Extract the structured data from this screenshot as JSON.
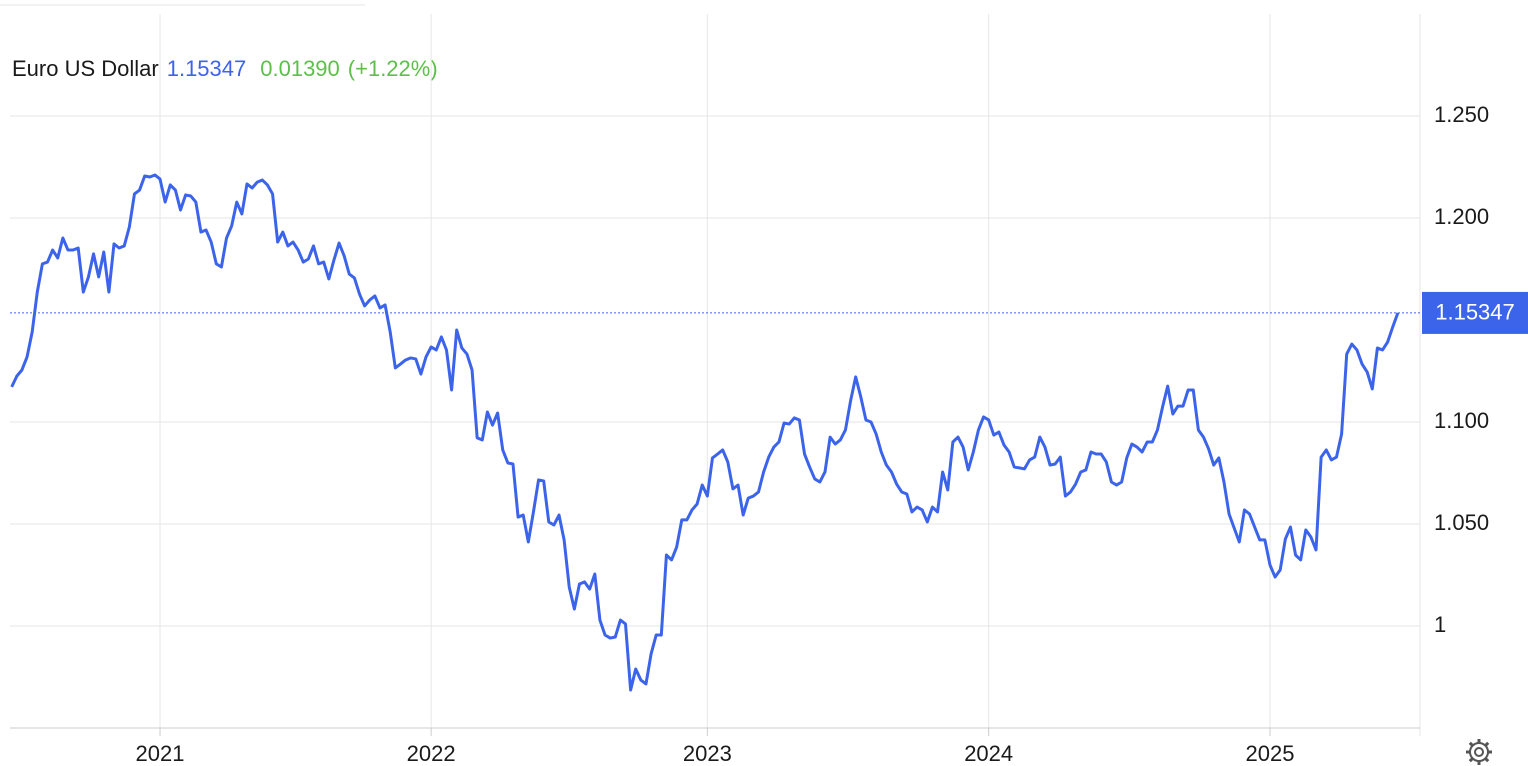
{
  "chart_data": {
    "type": "line",
    "price": "1.15347",
    "change": "0.01390",
    "change_percent": "(+1.22%)",
    "categories": [
      null,
      null,
      null,
      null,
      null,
      null,
      null,
      null,
      null,
      null,
      null,
      null,
      null,
      null,
      null,
      null,
      null,
      null,
      null,
      null,
      null,
      null,
      null,
      null,
      null,
      null,
      null,
      null,
      null,
      "2021",
      null,
      null,
      null,
      null,
      null,
      null,
      null,
      null,
      null,
      null,
      null,
      null,
      null,
      null,
      null,
      null,
      null,
      null,
      null,
      null,
      null,
      null,
      null,
      null,
      null,
      null,
      null,
      null,
      null,
      null,
      null,
      null,
      null,
      null,
      null,
      null,
      null,
      null,
      null,
      null,
      null,
      null,
      null,
      null,
      null,
      null,
      null,
      null,
      null,
      null,
      null,
      null,
      "2022",
      null,
      null,
      null,
      null,
      null,
      null,
      null,
      null,
      null,
      null,
      null,
      null,
      null,
      null,
      null,
      null,
      null,
      null,
      null,
      null,
      null,
      null,
      null,
      null,
      null,
      null,
      null,
      null,
      null,
      null,
      null,
      null,
      null,
      null,
      null,
      null,
      null,
      null,
      null,
      null,
      null,
      null,
      null,
      null,
      null,
      null,
      null,
      null,
      null,
      null,
      null,
      null,
      null,
      "2023",
      null,
      null,
      null,
      null,
      null,
      null,
      null,
      null,
      null,
      null,
      null,
      null,
      null,
      null,
      null,
      null,
      null,
      null,
      null,
      null,
      null,
      null,
      null,
      null,
      null,
      null,
      null,
      null,
      null,
      null,
      null,
      null,
      null,
      null,
      null,
      null,
      null,
      null,
      null,
      null,
      null,
      null,
      null,
      null,
      null,
      null,
      null,
      null,
      null,
      null,
      null,
      null,
      null,
      null,
      "2024",
      null,
      null,
      null,
      null,
      null,
      null,
      null,
      null,
      null,
      null,
      null,
      null,
      null,
      null,
      null,
      null,
      null,
      null,
      null,
      null,
      null,
      null,
      null,
      null,
      null,
      null,
      null,
      null,
      null,
      null,
      null,
      null,
      null,
      null,
      null,
      null,
      null,
      null,
      null,
      null,
      null,
      null,
      null,
      null,
      null,
      null,
      null,
      null,
      null,
      null,
      null,
      null,
      null,
      null,
      "2025",
      null,
      null,
      null,
      null,
      null,
      null,
      null,
      null,
      null,
      null,
      null,
      null,
      null,
      null,
      null,
      null,
      null,
      null,
      null,
      null,
      null,
      null,
      null,
      null,
      null
    ],
    "series": [
      {
        "name": "Euro US Dollar",
        "color": "#3c64ea",
        "values": [
          1.1172,
          1.1225,
          1.1255,
          1.1319,
          1.1441,
          1.1637,
          1.1775,
          1.1784,
          1.1843,
          1.1804,
          1.1902,
          1.1843,
          1.1843,
          1.1853,
          1.1637,
          1.1711,
          1.1824,
          1.1711,
          1.1833,
          1.1637,
          1.1873,
          1.1853,
          1.1863,
          1.1956,
          1.2118,
          1.2137,
          1.2206,
          1.2201,
          1.2211,
          1.2191,
          1.2078,
          1.2162,
          1.2137,
          1.2039,
          1.2113,
          1.2108,
          1.2078,
          1.1931,
          1.1941,
          1.1882,
          1.1775,
          1.176,
          1.1902,
          1.1961,
          1.2078,
          1.202,
          1.2167,
          1.2147,
          1.2176,
          1.2186,
          1.2162,
          1.2118,
          1.1882,
          1.1931,
          1.1863,
          1.1882,
          1.1843,
          1.1784,
          1.1799,
          1.1863,
          1.1775,
          1.1784,
          1.1701,
          1.1794,
          1.1877,
          1.1814,
          1.1725,
          1.1706,
          1.1627,
          1.1569,
          1.1598,
          1.1618,
          1.1559,
          1.1574,
          1.1441,
          1.1265,
          1.1284,
          1.1304,
          1.1314,
          1.1309,
          1.1235,
          1.1319,
          1.1368,
          1.1353,
          1.1417,
          1.1353,
          1.1157,
          1.1451,
          1.1363,
          1.1333,
          1.1255,
          1.0922,
          1.0912,
          1.1049,
          1.0985,
          1.1044,
          1.0863,
          1.0799,
          1.0794,
          1.0534,
          1.0544,
          1.0412,
          1.0559,
          1.0716,
          1.0711,
          1.051,
          1.0495,
          1.0544,
          1.0422,
          1.0191,
          1.0083,
          1.0206,
          1.0216,
          1.0181,
          1.0255,
          1.0029,
          0.9956,
          0.9941,
          0.9946,
          1.0029,
          1.001,
          0.9686,
          0.9789,
          0.9735,
          0.9716,
          0.9863,
          0.9956,
          0.9956,
          1.0348,
          1.0324,
          1.0387,
          1.052,
          1.052,
          1.0569,
          1.0598,
          1.0691,
          1.0637,
          1.0824,
          1.0843,
          1.0863,
          1.0804,
          1.0672,
          1.0691,
          1.0544,
          1.0627,
          1.0637,
          1.0657,
          1.0755,
          1.0828,
          1.0877,
          1.0902,
          1.0995,
          1.099,
          1.102,
          1.101,
          1.0843,
          1.0779,
          1.0721,
          1.0706,
          1.0755,
          1.0926,
          1.0892,
          1.0912,
          1.0961,
          1.1103,
          1.1221,
          1.1123,
          1.101,
          1.1,
          1.0941,
          1.0853,
          1.0789,
          1.0755,
          1.0696,
          1.0657,
          1.0647,
          1.0559,
          1.0583,
          1.0569,
          1.051,
          1.0583,
          1.0559,
          1.0755,
          1.0667,
          1.0902,
          1.0926,
          1.0877,
          1.0765,
          1.0853,
          1.0961,
          1.1025,
          1.101,
          1.0936,
          1.0951,
          1.0887,
          1.0853,
          1.0779,
          1.0775,
          1.077,
          1.0814,
          1.0828,
          1.0926,
          1.0877,
          1.0789,
          1.0794,
          1.0828,
          1.0637,
          1.0657,
          1.0696,
          1.0755,
          1.0765,
          1.0853,
          1.0843,
          1.0843,
          1.0804,
          1.0706,
          1.0691,
          1.0706,
          1.0824,
          1.0892,
          1.0877,
          1.0853,
          1.0902,
          1.0902,
          1.0961,
          1.1074,
          1.1176,
          1.1039,
          1.1078,
          1.1078,
          1.1157,
          1.1157,
          1.0961,
          1.0926,
          1.0868,
          1.0789,
          1.0824,
          1.0706,
          1.0549,
          1.048,
          1.0412,
          1.0569,
          1.0549,
          1.0485,
          1.0422,
          1.0422,
          1.0299,
          1.024,
          1.0275,
          1.0426,
          1.0485,
          1.0348,
          1.0324,
          1.0471,
          1.0436,
          1.0373,
          1.0828,
          1.0863,
          1.0814,
          1.0828,
          1.0941,
          1.1333,
          1.1382,
          1.1353,
          1.1284,
          1.1245,
          1.1162,
          1.1363,
          1.1353,
          1.1392,
          1.1466,
          1.15347
        ]
      }
    ],
    "ylim": [
      0.95,
      1.3
    ],
    "yticks": [
      {
        "value": 1.25,
        "label": "1.250"
      },
      {
        "value": 1.2,
        "label": "1.200"
      },
      {
        "value": 1.1,
        "label": "1.100"
      },
      {
        "value": 1.05,
        "label": "1.050"
      },
      1
    ],
    "grid": true
  }
}
